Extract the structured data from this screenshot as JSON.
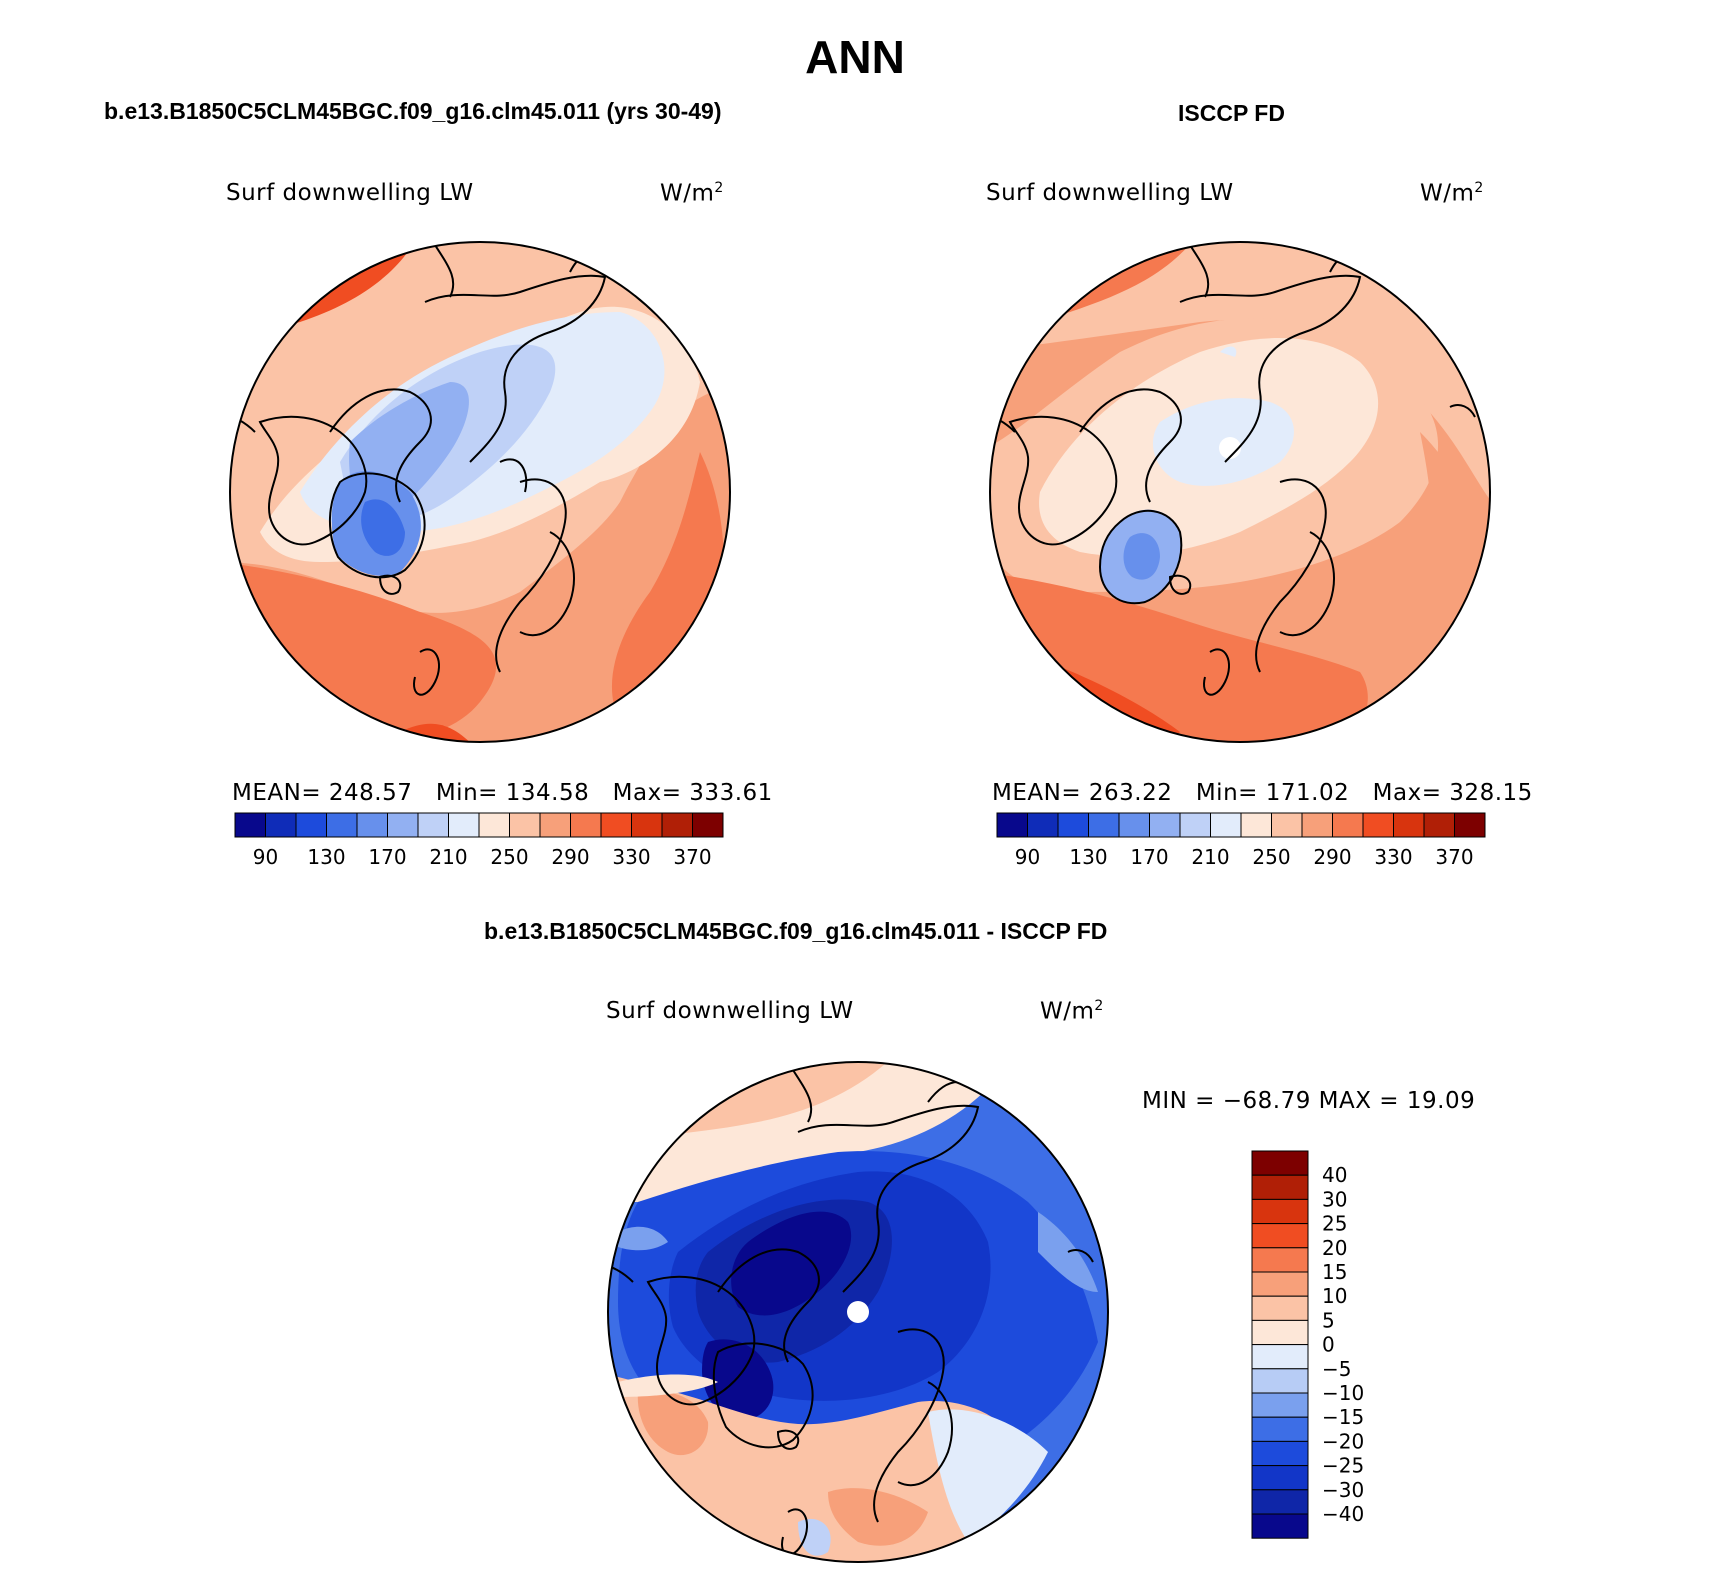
{
  "figure": {
    "title": "ANN"
  },
  "colors": {
    "seq": [
      "#08088c",
      "#0f2cb8",
      "#1d4bdc",
      "#3d6ee6",
      "#6790ec",
      "#92b0f2",
      "#bfd1f7",
      "#e2ecfb",
      "#fde7d8",
      "#fbc3a6",
      "#f7a07a",
      "#f5794f",
      "#f04d22",
      "#d8340e",
      "#b01f06",
      "#7d0000"
    ],
    "diff": [
      "#08088c",
      "#0f26a8",
      "#1236c8",
      "#1d4bdc",
      "#3d6ee6",
      "#7aa0ee",
      "#b7ccf5",
      "#e2ecfb",
      "#fde7d8",
      "#fbc3a6",
      "#f7a07a",
      "#f5794f",
      "#f04d22",
      "#d8340e",
      "#b01f06",
      "#7d0000"
    ],
    "coast": "#000000"
  },
  "panels": [
    {
      "title": "b.e13.B1850C5CLM45BGC.f09_g16.clm45.011 (yrs 30-49)",
      "variable": "Surf downwelling LW",
      "units": "W/m",
      "units_exp": "2",
      "mean_label": "MEAN=",
      "mean": "248.57",
      "min_label": "Min=",
      "min": "134.58",
      "max_label": "Max=",
      "max": "333.61",
      "colorbar_ticks": [
        "90",
        "130",
        "170",
        "210",
        "250",
        "290",
        "330",
        "370"
      ]
    },
    {
      "title": "ISCCP FD",
      "variable": "Surf downwelling LW",
      "units": "W/m",
      "units_exp": "2",
      "mean_label": "MEAN=",
      "mean": "263.22",
      "min_label": "Min=",
      "min": "171.02",
      "max_label": "Max=",
      "max": "328.15",
      "colorbar_ticks": [
        "90",
        "130",
        "170",
        "210",
        "250",
        "290",
        "330",
        "370"
      ]
    }
  ],
  "diff_panel": {
    "title": "b.e13.B1850C5CLM45BGC.f09_g16.clm45.011 - ISCCP FD",
    "variable": "Surf downwelling LW",
    "units": "W/m",
    "units_exp": "2",
    "minmax": "MIN = −68.79 MAX =   19.09",
    "colorbar_ticks": [
      "40",
      "30",
      "25",
      "20",
      "15",
      "10",
      "5",
      "0",
      "−5",
      "−10",
      "−15",
      "−20",
      "−25",
      "−30",
      "−40"
    ]
  }
}
